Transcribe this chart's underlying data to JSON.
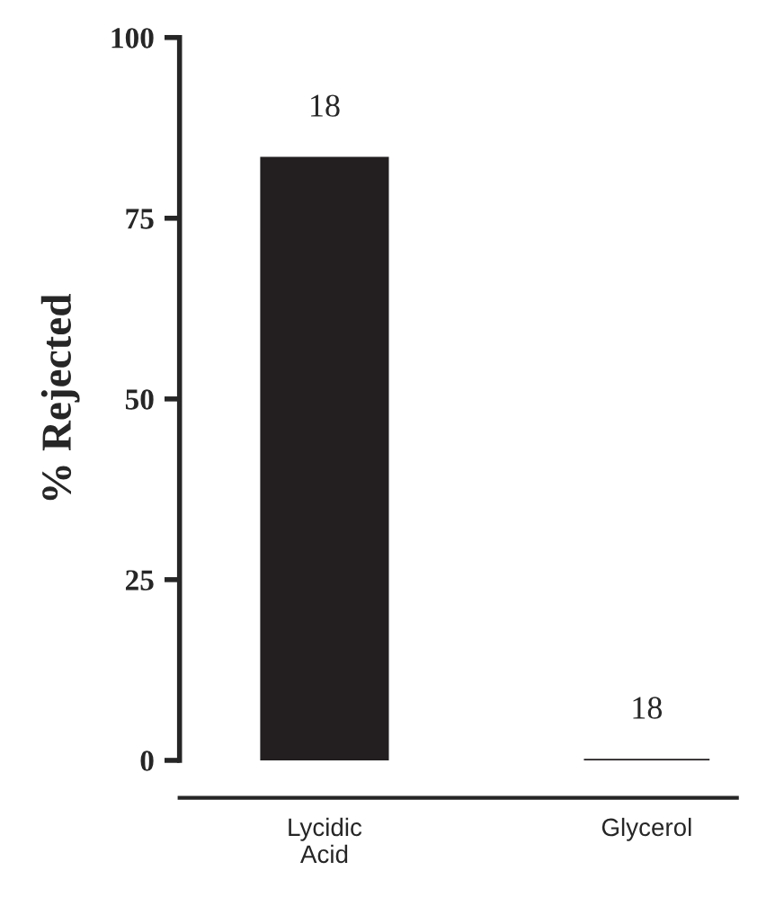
{
  "chart_data": {
    "type": "bar",
    "ylabel": "% Rejected",
    "categories": [
      "Lycidic\nAcid",
      "Glycerol"
    ],
    "values": [
      83.3,
      0
    ],
    "color": "#231f20",
    "ylim": [
      0,
      100
    ],
    "yticks": [
      0,
      25,
      50,
      75,
      100
    ],
    "grid": false,
    "legend": false,
    "annotations": [
      "18",
      "18"
    ]
  }
}
